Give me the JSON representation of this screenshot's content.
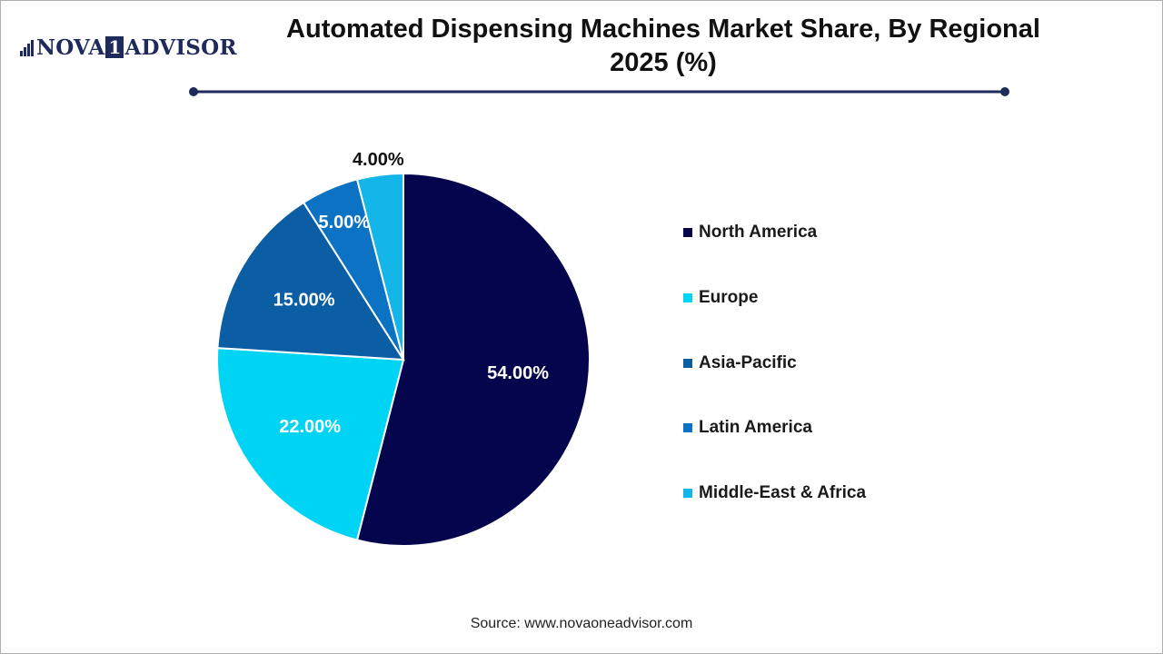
{
  "header": {
    "logo_part1": "NOVA",
    "logo_box": "1",
    "logo_part2": "ADVISOR",
    "title_line1": "Automated Dispensing Machines Market Share, By Regional",
    "title_line2": "2025 (%)"
  },
  "colors": {
    "brand": "#1e2a5a",
    "rule": "#1e2a5a"
  },
  "chart_data": {
    "type": "pie",
    "title": "Automated Dispensing Machines Market Share, By Regional 2025 (%)",
    "categories": [
      "North America",
      "Europe",
      "Asia-Pacific",
      "Latin America",
      "Middle-East & Africa"
    ],
    "values": [
      54.0,
      22.0,
      15.0,
      5.0,
      4.0
    ],
    "labels": [
      "54.00%",
      "22.00%",
      "15.00%",
      "5.00%",
      "4.00%"
    ],
    "colors": [
      "#05054e",
      "#00d4f5",
      "#0b5ea3",
      "#0b72c4",
      "#14b6ea"
    ],
    "label_colors": [
      "#ffffff",
      "#ffffff",
      "#ffffff",
      "#ffffff",
      "#111111"
    ],
    "legend_position": "right"
  },
  "legend": {
    "items": [
      "North America",
      "Europe",
      "Asia-Pacific",
      "Latin America",
      "Middle-East & Africa"
    ],
    "colors": [
      "#05054e",
      "#00d4f5",
      "#0b5ea3",
      "#0b72c4",
      "#14b6ea"
    ]
  },
  "footer": {
    "source": "Source: www.novaoneadvisor.com"
  }
}
